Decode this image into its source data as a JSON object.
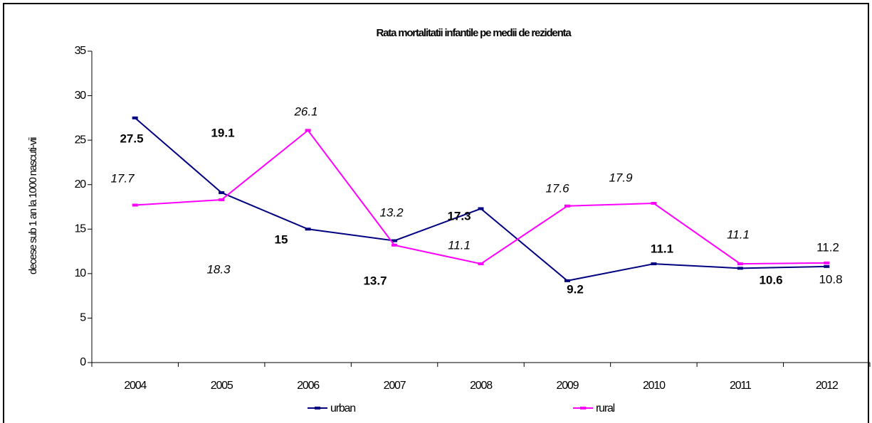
{
  "chart_data": {
    "type": "line",
    "title": "Rata mortalitatii infantile pe medii de rezidenta",
    "ylabel": "decese sub 1 an la 1000 nascuti-vii",
    "categories": [
      "2004",
      "2005",
      "2006",
      "2007",
      "2008",
      "2009",
      "2010",
      "2011",
      "2012"
    ],
    "series": [
      {
        "name": "urban",
        "color": "#000080",
        "values": [
          27.5,
          19.1,
          15,
          13.7,
          17.3,
          9.2,
          11.1,
          10.6,
          10.8
        ]
      },
      {
        "name": "rural",
        "color": "#ff00ff",
        "values": [
          17.7,
          18.3,
          26.1,
          13.2,
          11.1,
          17.6,
          17.9,
          11.1,
          11.2
        ]
      }
    ],
    "ylim": [
      0,
      35
    ],
    "yticks": [
      0,
      5,
      10,
      15,
      20,
      25,
      30,
      35
    ],
    "legend": "bottom"
  }
}
